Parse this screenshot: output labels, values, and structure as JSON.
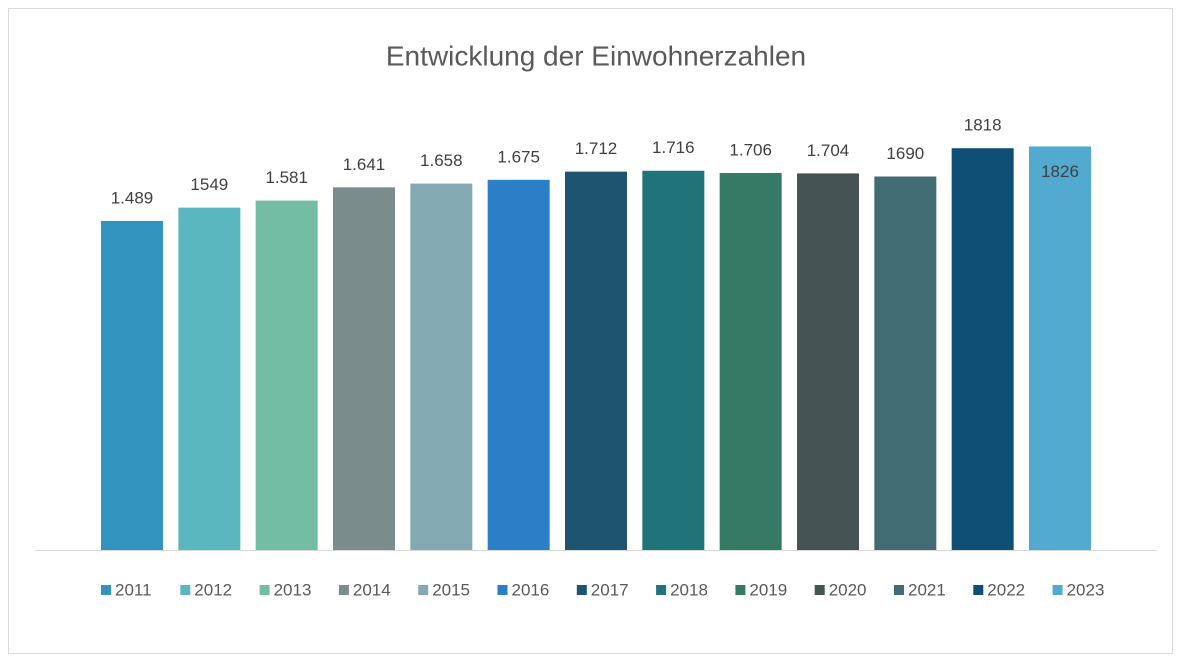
{
  "chart_data": {
    "type": "bar",
    "title": "Entwicklung der Einwohnerzahlen",
    "ylim": [
      0,
      2000
    ],
    "series": [
      {
        "name": "2011",
        "color": "#3194bd",
        "values": [
          1489
        ],
        "value_labels": [
          "1.489"
        ]
      },
      {
        "name": "2012",
        "color": "#5bb7bf",
        "values": [
          1549
        ],
        "value_labels": [
          "1549"
        ]
      },
      {
        "name": "2013",
        "color": "#72bda4",
        "values": [
          1581
        ],
        "value_labels": [
          "1.581"
        ]
      },
      {
        "name": "2014",
        "color": "#7a8c8c",
        "values": [
          1641
        ],
        "value_labels": [
          "1.641"
        ]
      },
      {
        "name": "2015",
        "color": "#83a9b3",
        "values": [
          1658
        ],
        "value_labels": [
          "1.658"
        ]
      },
      {
        "name": "2016",
        "color": "#2a7fc7",
        "values": [
          1675
        ],
        "value_labels": [
          "1.675"
        ]
      },
      {
        "name": "2017",
        "color": "#1e5470",
        "values": [
          1712
        ],
        "value_labels": [
          "1.712"
        ]
      },
      {
        "name": "2018",
        "color": "#21737a",
        "values": [
          1716
        ],
        "value_labels": [
          "1.716"
        ]
      },
      {
        "name": "2019",
        "color": "#357a65",
        "values": [
          1706
        ],
        "value_labels": [
          "1.706"
        ]
      },
      {
        "name": "2020",
        "color": "#465353",
        "values": [
          1704
        ],
        "value_labels": [
          "1.704"
        ]
      },
      {
        "name": "2021",
        "color": "#426c74",
        "values": [
          1690
        ],
        "value_labels": [
          "1690"
        ]
      },
      {
        "name": "2022",
        "color": "#0f4e75",
        "values": [
          1818
        ],
        "value_labels": [
          "1818"
        ]
      },
      {
        "name": "2023",
        "color": "#52aad1",
        "values": [
          1826
        ],
        "value_labels": [
          "1826"
        ]
      }
    ]
  }
}
